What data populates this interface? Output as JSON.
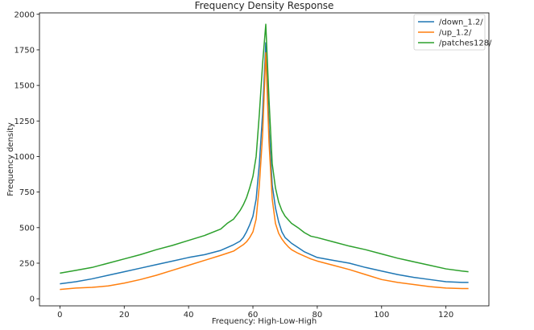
{
  "chart_data": {
    "type": "line",
    "title": "Frequency Density Response",
    "xlabel": "Frequency: High-Low-High",
    "ylabel": "Frequency density",
    "xlim": [
      -6.35,
      133.35
    ],
    "ylim": [
      -50,
      2010
    ],
    "xticks": [
      0,
      20,
      40,
      60,
      80,
      100,
      120
    ],
    "yticks": [
      0,
      250,
      500,
      750,
      1000,
      1250,
      1500,
      1750,
      2000
    ],
    "grid": false,
    "legend_position": "top-right",
    "series": [
      {
        "name": "/down_1.2/",
        "color": "#1f77b4",
        "x": [
          0,
          5,
          10,
          15,
          20,
          25,
          30,
          35,
          40,
          45,
          50,
          52,
          54,
          56,
          57,
          58,
          59,
          60,
          61,
          62,
          63,
          64,
          65,
          66,
          67,
          68,
          69,
          70,
          71,
          72,
          74,
          76,
          78,
          80,
          85,
          90,
          95,
          100,
          105,
          110,
          115,
          120,
          125,
          127
        ],
        "y": [
          105,
          120,
          140,
          165,
          190,
          215,
          240,
          265,
          290,
          310,
          340,
          360,
          380,
          405,
          430,
          470,
          520,
          580,
          700,
          950,
          1300,
          1800,
          1200,
          800,
          640,
          540,
          470,
          430,
          410,
          390,
          360,
          330,
          310,
          290,
          270,
          250,
          220,
          195,
          170,
          150,
          135,
          120,
          115,
          115
        ]
      },
      {
        "name": "/up_1.2/",
        "color": "#ff7f0e",
        "x": [
          0,
          5,
          10,
          15,
          20,
          25,
          30,
          35,
          40,
          45,
          50,
          52,
          54,
          56,
          57,
          58,
          59,
          60,
          61,
          62,
          63,
          64,
          65,
          66,
          67,
          68,
          69,
          70,
          71,
          72,
          74,
          76,
          78,
          80,
          85,
          90,
          95,
          100,
          105,
          110,
          115,
          120,
          125,
          127
        ],
        "y": [
          65,
          75,
          80,
          90,
          110,
          135,
          165,
          200,
          235,
          270,
          305,
          320,
          335,
          365,
          380,
          400,
          430,
          470,
          560,
          800,
          1150,
          1730,
          1100,
          700,
          530,
          460,
          420,
          390,
          365,
          345,
          320,
          300,
          280,
          265,
          235,
          205,
          170,
          135,
          115,
          100,
          85,
          75,
          72,
          72
        ]
      },
      {
        "name": "/patches128/",
        "color": "#2ca02c",
        "x": [
          0,
          5,
          10,
          15,
          20,
          25,
          30,
          35,
          40,
          45,
          50,
          52,
          54,
          56,
          57,
          58,
          59,
          60,
          61,
          62,
          63,
          64,
          65,
          66,
          67,
          68,
          69,
          70,
          71,
          72,
          74,
          76,
          78,
          80,
          85,
          90,
          95,
          100,
          105,
          110,
          115,
          120,
          125,
          127
        ],
        "y": [
          180,
          200,
          220,
          250,
          280,
          310,
          345,
          375,
          410,
          445,
          490,
          530,
          560,
          620,
          660,
          710,
          780,
          860,
          1000,
          1300,
          1650,
          1930,
          1400,
          950,
          780,
          680,
          620,
          580,
          555,
          530,
          500,
          465,
          440,
          430,
          400,
          370,
          345,
          315,
          285,
          260,
          235,
          210,
          195,
          190
        ]
      }
    ]
  }
}
